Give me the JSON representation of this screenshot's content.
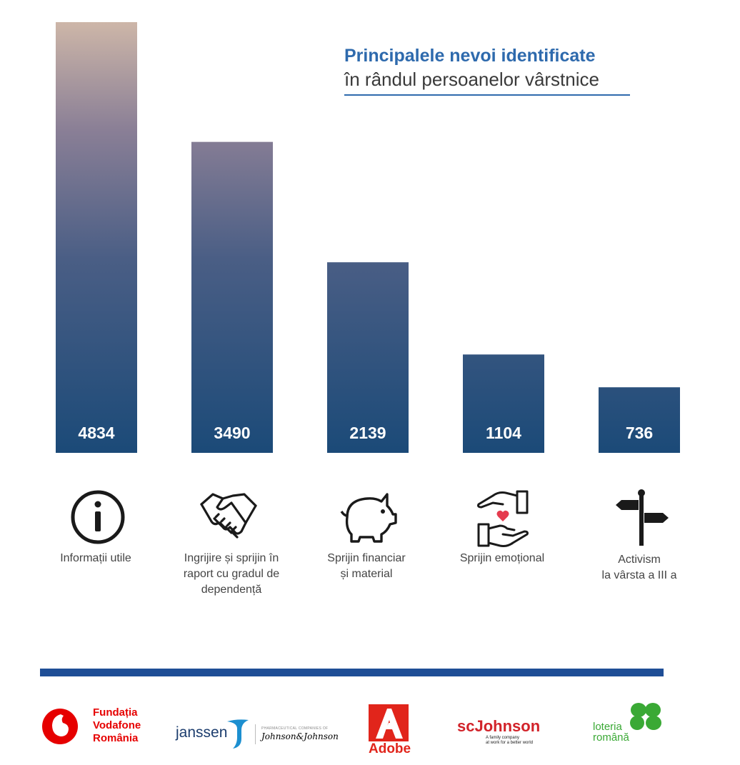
{
  "chart_data": {
    "type": "bar",
    "title": "Principalele nevoi identificate",
    "subtitle": "în rândul persoanelor vârstnice",
    "categories": [
      "Informații utile",
      "Ingrijire și sprijin în raport cu gradul de dependență",
      "Sprijin financiar și material",
      "Sprijin emoțional",
      "Activism la vârsta a III a"
    ],
    "category_lines": [
      [
        "Informații utile"
      ],
      [
        "Ingrijire și sprijin în",
        "raport cu gradul de",
        "dependență"
      ],
      [
        "Sprijin financiar",
        "și material"
      ],
      [
        "Sprijin emoțional"
      ],
      [
        "Activism",
        "la vârsta a III a"
      ]
    ],
    "category_icons": [
      "info-icon",
      "handshake-icon",
      "piggy-bank-icon",
      "caring-hands-heart-icon",
      "signpost-icon"
    ],
    "values": [
      4834,
      3490,
      2139,
      1104,
      736
    ],
    "ylim": [
      0,
      4834
    ],
    "grid": false,
    "legend": "none",
    "bar_color_bottom": "#1b4a78",
    "bar_color_top": "#cdb6a8",
    "value_label_color": "#ffffff"
  },
  "colors": {
    "title": "#2e6aad",
    "title_rule": "#2e6aad",
    "footer_rule": "#1f4e96",
    "vodafone_red": "#e60000",
    "adobe_red": "#e1251b",
    "scj_red": "#d2232a",
    "loteria_green": "#3aa935",
    "janssen_blue": "#1c3d6e"
  },
  "footer": {
    "logos": [
      {
        "name": "vodafone",
        "lines": [
          "Fundația",
          "Vodafone",
          "România"
        ]
      },
      {
        "name": "janssen",
        "word": "janssen",
        "small": "PHARMACEUTICAL COMPANIES OF",
        "script": "Johnson&Johnson"
      },
      {
        "name": "adobe",
        "word": "Adobe"
      },
      {
        "name": "scjohnson",
        "word": "scJohnson",
        "tagline": [
          "A family company",
          "at work for a better world"
        ]
      },
      {
        "name": "loteria",
        "lines": [
          "loteria",
          "română"
        ]
      }
    ]
  }
}
